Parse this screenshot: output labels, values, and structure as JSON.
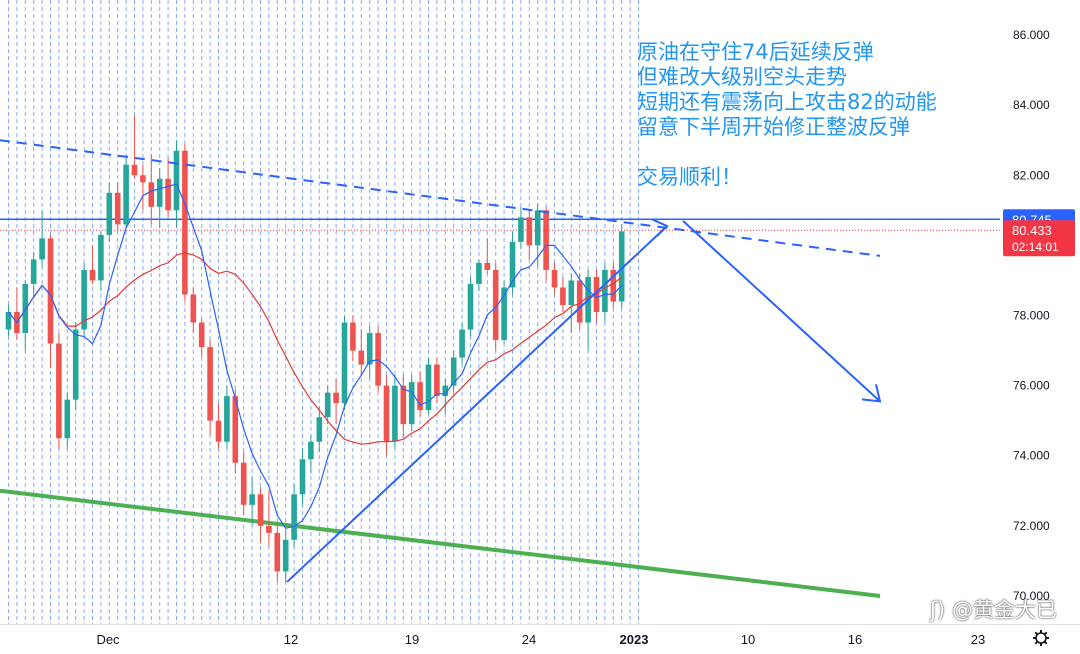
{
  "chart_data": {
    "type": "candlestick",
    "instrument_note": "crude oil daily",
    "x_ticks": [
      "Dec",
      "12",
      "19",
      "24",
      "2023",
      "10",
      "16",
      "23"
    ],
    "y_ticks": [
      "86.000",
      "84.000",
      "82.000",
      "80.000",
      "78.000",
      "76.000",
      "74.000",
      "72.000",
      "70.000"
    ],
    "ylim": [
      69.2,
      87.0
    ],
    "grid": "vertical dashed blue lines, one per bar",
    "price_lines": [
      {
        "name": "resistance",
        "value": 80.745,
        "label": "80.745",
        "color": "#2962ff"
      },
      {
        "name": "last-price",
        "value": 80.433,
        "label": "80.433",
        "countdown": "02:14:01",
        "color": "#f23645"
      }
    ],
    "moving_averages": [
      {
        "name": "fast-ma",
        "color": "#2962ff"
      },
      {
        "name": "slow-ma",
        "color": "#e53935"
      }
    ],
    "candles": [
      [
        77.6,
        78.3,
        77.4,
        78.1
      ],
      [
        78.1,
        78.8,
        77.3,
        77.5
      ],
      [
        77.5,
        79.0,
        77.0,
        78.9
      ],
      [
        78.9,
        79.8,
        78.5,
        79.6
      ],
      [
        79.6,
        81.0,
        79.4,
        80.2
      ],
      [
        80.2,
        80.3,
        76.5,
        77.2
      ],
      [
        77.2,
        77.5,
        74.2,
        74.5
      ],
      [
        74.5,
        75.8,
        74.2,
        75.6
      ],
      [
        75.6,
        77.8,
        75.3,
        77.6
      ],
      [
        77.6,
        79.5,
        77.4,
        79.3
      ],
      [
        79.3,
        80.0,
        78.9,
        79.0
      ],
      [
        79.0,
        80.4,
        78.7,
        80.3
      ],
      [
        80.3,
        81.8,
        80.1,
        81.5
      ],
      [
        81.5,
        81.8,
        80.4,
        80.6
      ],
      [
        80.6,
        82.6,
        80.5,
        82.3
      ],
      [
        82.3,
        83.7,
        81.9,
        82.0
      ],
      [
        82.0,
        82.3,
        81.0,
        81.8
      ],
      [
        81.8,
        82.6,
        80.6,
        81.1
      ],
      [
        81.1,
        82.2,
        80.5,
        81.9
      ],
      [
        81.9,
        82.5,
        80.8,
        81.0
      ],
      [
        81.0,
        83.0,
        80.5,
        82.7
      ],
      [
        82.7,
        82.9,
        78.4,
        78.6
      ],
      [
        78.6,
        78.8,
        77.5,
        77.8
      ],
      [
        77.8,
        77.9,
        76.8,
        77.1
      ],
      [
        77.1,
        77.3,
        74.6,
        75.0
      ],
      [
        75.0,
        75.5,
        74.2,
        74.4
      ],
      [
        74.4,
        76.0,
        74.2,
        75.7
      ],
      [
        75.7,
        75.9,
        73.5,
        73.8
      ],
      [
        73.8,
        74.1,
        72.3,
        72.6
      ],
      [
        72.6,
        73.4,
        72.0,
        72.9
      ],
      [
        72.9,
        73.1,
        71.5,
        72.0
      ],
      [
        72.0,
        73.0,
        71.4,
        71.8
      ],
      [
        71.8,
        72.1,
        70.4,
        70.7
      ],
      [
        70.7,
        71.9,
        70.4,
        71.6
      ],
      [
        71.6,
        73.2,
        71.4,
        72.9
      ],
      [
        72.9,
        74.2,
        72.6,
        73.9
      ],
      [
        73.9,
        74.6,
        73.5,
        74.4
      ],
      [
        74.4,
        75.4,
        74.1,
        75.1
      ],
      [
        75.1,
        76.0,
        74.9,
        75.8
      ],
      [
        75.8,
        76.2,
        74.9,
        75.5
      ],
      [
        75.5,
        78.0,
        75.3,
        77.8
      ],
      [
        77.8,
        78.0,
        76.7,
        77.0
      ],
      [
        77.0,
        77.6,
        76.3,
        76.6
      ],
      [
        76.6,
        77.7,
        76.2,
        77.5
      ],
      [
        77.5,
        77.7,
        75.8,
        76.0
      ],
      [
        76.0,
        76.3,
        74.0,
        74.4
      ],
      [
        74.4,
        76.3,
        74.2,
        76.0
      ],
      [
        76.0,
        76.3,
        74.5,
        74.9
      ],
      [
        74.9,
        76.3,
        74.7,
        76.1
      ],
      [
        76.1,
        76.4,
        75.1,
        75.3
      ],
      [
        75.3,
        76.8,
        75.2,
        76.6
      ],
      [
        76.6,
        76.8,
        75.5,
        75.7
      ],
      [
        75.7,
        76.2,
        75.2,
        76.0
      ],
      [
        76.0,
        77.0,
        75.8,
        76.8
      ],
      [
        76.8,
        77.8,
        76.6,
        77.6
      ],
      [
        77.6,
        79.1,
        77.4,
        78.9
      ],
      [
        78.9,
        79.6,
        78.7,
        79.5
      ],
      [
        79.5,
        80.2,
        79.2,
        79.3
      ],
      [
        79.3,
        79.5,
        77.0,
        77.3
      ],
      [
        77.3,
        79.0,
        77.2,
        78.8
      ],
      [
        78.8,
        80.4,
        78.6,
        80.1
      ],
      [
        80.1,
        81.1,
        79.9,
        80.8
      ],
      [
        80.8,
        81.0,
        79.6,
        80.0
      ],
      [
        80.0,
        81.2,
        79.4,
        81.0
      ],
      [
        81.0,
        81.1,
        79.0,
        79.3
      ],
      [
        79.3,
        79.5,
        78.6,
        78.8
      ],
      [
        78.8,
        79.1,
        78.1,
        78.3
      ],
      [
        78.3,
        79.2,
        77.5,
        79.0
      ],
      [
        79.0,
        79.2,
        77.6,
        77.8
      ],
      [
        77.8,
        79.3,
        77.0,
        79.1
      ],
      [
        79.1,
        79.3,
        77.8,
        78.1
      ],
      [
        78.1,
        79.5,
        77.8,
        79.3
      ],
      [
        79.3,
        79.5,
        78.2,
        78.4
      ],
      [
        78.4,
        80.6,
        78.2,
        80.4
      ]
    ]
  },
  "annotation": {
    "lines": [
      "原油在守住74后延续反弹",
      "但难改大级别空头走势",
      "短期还有震荡向上攻击82的动能",
      "留意下半周开始修正整波反弹",
      "",
      "交易顺利！"
    ]
  },
  "watermark": "@黄金大已",
  "colors": {
    "up": "#26a69a",
    "down": "#ef5350",
    "fast_ma": "#2962ff",
    "slow_ma": "#e53935",
    "support": "#4caf50",
    "drawing": "#2962ff",
    "grid": "#2962ff",
    "annotation": "#2196f3"
  },
  "icons": {
    "settings": "gear-icon",
    "watermark_logo": "logo-icon"
  }
}
